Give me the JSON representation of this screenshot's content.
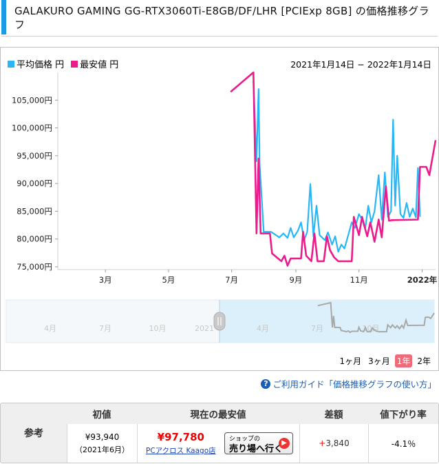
{
  "title": "GALAKURO GAMING GG-RTX3060Ti-E8GB/DF/LHR [PCIExp 8GB] の価格推移グラフ",
  "legend": {
    "avg": {
      "label": "平均価格 円",
      "color": "#29b6f6"
    },
    "min": {
      "label": "最安値 円",
      "color": "#ec1a8c"
    }
  },
  "date_range": "2021年1月14日 − 2022年1月14日",
  "range_buttons": [
    "1ヶ月",
    "3ヶ月",
    "1年",
    "2年"
  ],
  "active_range": "1年",
  "navigator_labels": [
    "4月",
    "7月",
    "10月",
    "2021",
    "4月",
    "7月",
    "10月"
  ],
  "guide_link": "ご利用ガイド「価格推移グラフの使い方」",
  "reference": {
    "label": "参考",
    "headers": [
      "初値",
      "現在の最安値",
      "差額",
      "値下がり率"
    ],
    "initial_price": "¥93,940",
    "initial_date": "（2021年6月）",
    "current_min": "¥97,780",
    "shop_name": "PCアクロス Kaago店",
    "shop_btn_small": "ショップの",
    "shop_btn_big": "売り場へ行く",
    "diff_sign": "+",
    "diff_value": "3,840",
    "drop_rate": "-4.1％"
  },
  "chart_data": {
    "type": "line",
    "title": "GALAKURO GAMING GG-RTX3060Ti-E8GB/DF/LHR [PCIExp 8GB] の価格推移グラフ",
    "xlabel": "",
    "ylabel": "",
    "x_ticks": [
      "3月",
      "5月",
      "7月",
      "9月",
      "11月",
      "2022年"
    ],
    "y_ticks": [
      "75,000円",
      "80,000円",
      "85,000円",
      "90,000円",
      "95,000円",
      "100,000円",
      "105,000円"
    ],
    "ylim": [
      74500,
      110000
    ],
    "grid": false,
    "legend_position": "top-left",
    "series": [
      {
        "name": "平均価格 円",
        "color": "#29b6f6",
        "points": [
          [
            "2021-07-22",
            108500
          ],
          [
            "2021-07-25",
            94000
          ],
          [
            "2021-07-27",
            107000
          ],
          [
            "2021-07-28",
            93500
          ],
          [
            "2021-08-01",
            81300
          ],
          [
            "2021-08-08",
            81300
          ],
          [
            "2021-08-12",
            80800
          ],
          [
            "2021-08-16",
            80300
          ],
          [
            "2021-08-20",
            81000
          ],
          [
            "2021-08-24",
            80200
          ],
          [
            "2021-08-27",
            82000
          ],
          [
            "2021-08-30",
            80300
          ],
          [
            "2021-09-03",
            81500
          ],
          [
            "2021-09-06",
            83000
          ],
          [
            "2021-09-09",
            79800
          ],
          [
            "2021-09-12",
            81300
          ],
          [
            "2021-09-15",
            89900
          ],
          [
            "2021-09-18",
            80500
          ],
          [
            "2021-09-21",
            86000
          ],
          [
            "2021-09-24",
            80700
          ],
          [
            "2021-09-29",
            79800
          ],
          [
            "2021-10-02",
            81200
          ],
          [
            "2021-10-06",
            79000
          ],
          [
            "2021-10-09",
            80500
          ],
          [
            "2021-10-12",
            77700
          ],
          [
            "2021-10-15",
            79000
          ],
          [
            "2021-10-18",
            78300
          ],
          [
            "2021-10-21",
            80300
          ],
          [
            "2021-10-25",
            83000
          ],
          [
            "2021-10-28",
            82000
          ],
          [
            "2021-11-01",
            84500
          ],
          [
            "2021-11-04",
            83500
          ],
          [
            "2021-11-07",
            81800
          ],
          [
            "2021-11-10",
            86000
          ],
          [
            "2021-11-13",
            83000
          ],
          [
            "2021-11-16",
            85000
          ],
          [
            "2021-11-20",
            91500
          ],
          [
            "2021-11-23",
            83500
          ],
          [
            "2021-11-26",
            92000
          ],
          [
            "2021-11-29",
            84000
          ],
          [
            "2021-12-02",
            85000
          ],
          [
            "2021-12-04",
            101500
          ],
          [
            "2021-12-06",
            86000
          ],
          [
            "2021-12-08",
            95000
          ],
          [
            "2021-12-11",
            84500
          ],
          [
            "2021-12-14",
            83800
          ],
          [
            "2021-12-17",
            86500
          ],
          [
            "2021-12-20",
            84000
          ],
          [
            "2021-12-23",
            85500
          ],
          [
            "2021-12-26",
            83900
          ],
          [
            "2021-12-28",
            92800
          ],
          [
            "2021-12-30",
            84000
          ]
        ]
      },
      {
        "name": "最安値 円",
        "color": "#ec1a8c",
        "points": [
          [
            "2021-06-30",
            106500
          ],
          [
            "2021-07-22",
            110000
          ],
          [
            "2021-07-25",
            81000
          ],
          [
            "2021-07-27",
            94500
          ],
          [
            "2021-07-29",
            81000
          ],
          [
            "2021-08-07",
            81000
          ],
          [
            "2021-08-09",
            77400
          ],
          [
            "2021-08-18",
            76000
          ],
          [
            "2021-08-21",
            77000
          ],
          [
            "2021-08-24",
            75200
          ],
          [
            "2021-08-27",
            76500
          ],
          [
            "2021-09-06",
            76500
          ],
          [
            "2021-09-08",
            81300
          ],
          [
            "2021-09-11",
            77000
          ],
          [
            "2021-09-16",
            76000
          ],
          [
            "2021-09-19",
            81000
          ],
          [
            "2021-09-22",
            76000
          ],
          [
            "2021-09-28",
            76000
          ],
          [
            "2021-10-01",
            80500
          ],
          [
            "2021-10-04",
            78000
          ],
          [
            "2021-10-08",
            76700
          ],
          [
            "2021-10-12",
            76000
          ],
          [
            "2021-10-25",
            76000
          ],
          [
            "2021-10-27",
            84000
          ],
          [
            "2021-11-01",
            80700
          ],
          [
            "2021-11-04",
            84000
          ],
          [
            "2021-11-07",
            81800
          ],
          [
            "2021-11-09",
            80500
          ],
          [
            "2021-11-12",
            83000
          ],
          [
            "2021-11-16",
            79500
          ],
          [
            "2021-11-20",
            83500
          ],
          [
            "2021-11-23",
            80300
          ],
          [
            "2021-11-27",
            89500
          ],
          [
            "2021-11-30",
            83300
          ],
          [
            "2021-12-03",
            83400
          ],
          [
            "2021-12-28",
            83500
          ],
          [
            "2021-12-30",
            93000
          ],
          [
            "2022-01-05",
            93000
          ],
          [
            "2022-01-08",
            91500
          ],
          [
            "2022-01-14",
            97800
          ]
        ]
      }
    ]
  }
}
